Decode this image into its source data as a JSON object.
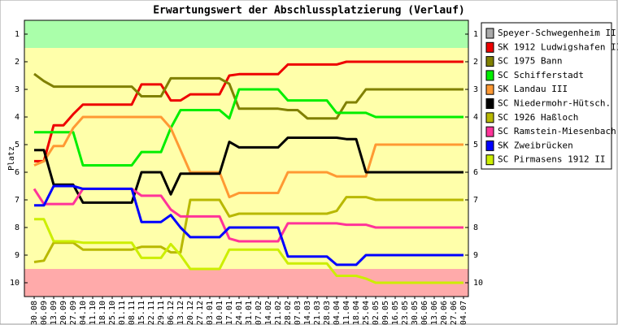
{
  "chart_data": {
    "type": "line",
    "title": "Erwartungswert der Abschlussplatzierung (Verlauf)",
    "y_label": "Platz",
    "categories": [
      "30.08",
      "06.09",
      "13.09",
      "20.09",
      "27.09",
      "04.10",
      "11.10",
      "18.10",
      "25.10",
      "01.11",
      "08.11",
      "15.11",
      "22.11",
      "29.11",
      "06.12",
      "13.12",
      "20.12",
      "27.12",
      "03.01",
      "10.01",
      "17.01",
      "24.01",
      "31.01",
      "07.02",
      "14.02",
      "21.02",
      "28.02",
      "07.03",
      "14.03",
      "21.03",
      "28.03",
      "04.04",
      "11.04",
      "18.04",
      "25.04",
      "02.05",
      "09.05",
      "16.05",
      "23.05",
      "30.05",
      "06.06",
      "13.06",
      "20.06",
      "27.06",
      "04.07"
    ],
    "ylim": [
      10.5,
      0.5
    ],
    "yticks": [
      1,
      2,
      3,
      4,
      5,
      6,
      7,
      8,
      9,
      10
    ],
    "series": [
      {
        "name": "Speyer-Schwegenheim II",
        "color": "#aaaaaa",
        "values": [
          null,
          null,
          null,
          null,
          null,
          null,
          null,
          null,
          null,
          null,
          null,
          null,
          null,
          null,
          null,
          null,
          null,
          null,
          null,
          null,
          null,
          null,
          null,
          null,
          null,
          null,
          null,
          null,
          null,
          null,
          null,
          null,
          null,
          null,
          null,
          null,
          null,
          null,
          null,
          null,
          null,
          null,
          null,
          null,
          null
        ]
      },
      {
        "name": "SK 1912 Ludwigshafen II",
        "color": "#ee0000",
        "values": [
          5.6,
          5.6,
          4.3,
          4.3,
          3.9,
          3.55,
          3.55,
          3.55,
          3.55,
          3.55,
          3.55,
          2.82,
          2.82,
          2.82,
          3.4,
          3.4,
          3.18,
          3.18,
          3.18,
          3.18,
          2.5,
          2.45,
          2.45,
          2.45,
          2.45,
          2.45,
          2.1,
          2.1,
          2.1,
          2.1,
          2.1,
          2.1,
          2,
          2,
          2,
          2,
          2,
          2,
          2,
          2,
          2,
          2,
          2,
          2,
          2
        ]
      },
      {
        "name": "SC 1975 Bann",
        "color": "#808000",
        "values": [
          2.44,
          2.7,
          2.9,
          2.9,
          2.9,
          2.9,
          2.9,
          2.9,
          2.9,
          2.9,
          2.9,
          3.25,
          3.25,
          3.25,
          2.6,
          2.6,
          2.6,
          2.6,
          2.6,
          2.6,
          2.8,
          3.7,
          3.7,
          3.7,
          3.7,
          3.7,
          3.75,
          3.75,
          4.05,
          4.05,
          4.05,
          4.05,
          3.47,
          3.47,
          3,
          3,
          3,
          3,
          3,
          3,
          3,
          3,
          3,
          3,
          3
        ]
      },
      {
        "name": "SC Schifferstadt",
        "color": "#00ee00",
        "values": [
          4.55,
          4.55,
          4.55,
          4.55,
          4.55,
          5.75,
          5.75,
          5.75,
          5.75,
          5.75,
          5.75,
          5.27,
          5.27,
          5.27,
          4.4,
          3.75,
          3.75,
          3.75,
          3.75,
          3.75,
          4.05,
          3,
          3,
          3,
          3,
          3,
          3.4,
          3.4,
          3.4,
          3.4,
          3.4,
          3.85,
          3.85,
          3.85,
          3.85,
          4,
          4,
          4,
          4,
          4,
          4,
          4,
          4,
          4,
          4
        ]
      },
      {
        "name": "SK Landau III",
        "color": "#ff9933",
        "values": [
          5.75,
          5.6,
          5.05,
          5.05,
          4.4,
          4,
          4,
          4,
          4,
          4,
          4,
          4,
          4,
          4,
          4.4,
          5.2,
          6,
          6,
          6,
          6,
          6.9,
          6.75,
          6.75,
          6.75,
          6.75,
          6.75,
          6,
          6,
          6,
          6,
          6,
          6.15,
          6.15,
          6.15,
          6.15,
          5,
          5,
          5,
          5,
          5,
          5,
          5,
          5,
          5,
          5
        ]
      },
      {
        "name": "SC Niedermohr-Hütsch.",
        "color": "#000000",
        "values": [
          5.2,
          5.2,
          6.45,
          6.45,
          6.45,
          7.1,
          7.1,
          7.1,
          7.1,
          7.1,
          7.1,
          6,
          6,
          6,
          6.8,
          6.05,
          6.05,
          6.05,
          6.05,
          6.05,
          4.9,
          5.1,
          5.1,
          5.1,
          5.1,
          5.1,
          4.75,
          4.75,
          4.75,
          4.75,
          4.75,
          4.75,
          4.8,
          4.8,
          6,
          6,
          6,
          6,
          6,
          6,
          6,
          6,
          6,
          6,
          6
        ]
      },
      {
        "name": "SC 1926 Haßloch",
        "color": "#b8b800",
        "values": [
          9.25,
          9.2,
          8.55,
          8.55,
          8.55,
          8.8,
          8.8,
          8.8,
          8.8,
          8.8,
          8.8,
          8.7,
          8.7,
          8.7,
          8.9,
          8.9,
          7,
          7,
          7,
          7,
          7.6,
          7.5,
          7.5,
          7.5,
          7.5,
          7.5,
          7.5,
          7.5,
          7.5,
          7.5,
          7.5,
          7.4,
          6.9,
          6.9,
          6.9,
          7,
          7,
          7,
          7,
          7,
          7,
          7,
          7,
          7,
          7
        ]
      },
      {
        "name": "SC Ramstein-Miesenbach",
        "color": "#ff3399",
        "values": [
          6.6,
          7.15,
          7.15,
          7.15,
          7.15,
          6.6,
          6.6,
          6.6,
          6.6,
          6.6,
          6.6,
          6.85,
          6.85,
          6.85,
          7.35,
          7.6,
          7.6,
          7.6,
          7.6,
          7.6,
          8.4,
          8.5,
          8.5,
          8.5,
          8.5,
          8.5,
          7.85,
          7.85,
          7.85,
          7.85,
          7.85,
          7.85,
          7.9,
          7.9,
          7.9,
          8,
          8,
          8,
          8,
          8,
          8,
          8,
          8,
          8,
          8
        ]
      },
      {
        "name": "SK Zweibrücken",
        "color": "#0000ff",
        "values": [
          7.2,
          7.2,
          6.5,
          6.5,
          6.5,
          6.6,
          6.6,
          6.6,
          6.6,
          6.6,
          6.6,
          7.8,
          7.8,
          7.8,
          7.55,
          8,
          8.35,
          8.35,
          8.35,
          8.35,
          8,
          8,
          8,
          8,
          8,
          8,
          9.05,
          9.05,
          9.05,
          9.05,
          9.05,
          9.35,
          9.35,
          9.35,
          9,
          9,
          9,
          9,
          9,
          9,
          9,
          9,
          9,
          9,
          9
        ]
      },
      {
        "name": "SC Pirmasens 1912 II",
        "color": "#ccee00",
        "values": [
          7.7,
          7.7,
          8.5,
          8.5,
          8.5,
          8.55,
          8.55,
          8.55,
          8.55,
          8.55,
          8.55,
          9.1,
          9.1,
          9.1,
          8.6,
          9,
          9.5,
          9.5,
          9.5,
          9.5,
          8.8,
          8.8,
          8.8,
          8.8,
          8.8,
          8.8,
          9.3,
          9.3,
          9.3,
          9.3,
          9.3,
          9.75,
          9.75,
          9.75,
          9.85,
          10,
          10,
          10,
          10,
          10,
          10,
          10,
          10,
          10,
          10
        ]
      }
    ]
  }
}
